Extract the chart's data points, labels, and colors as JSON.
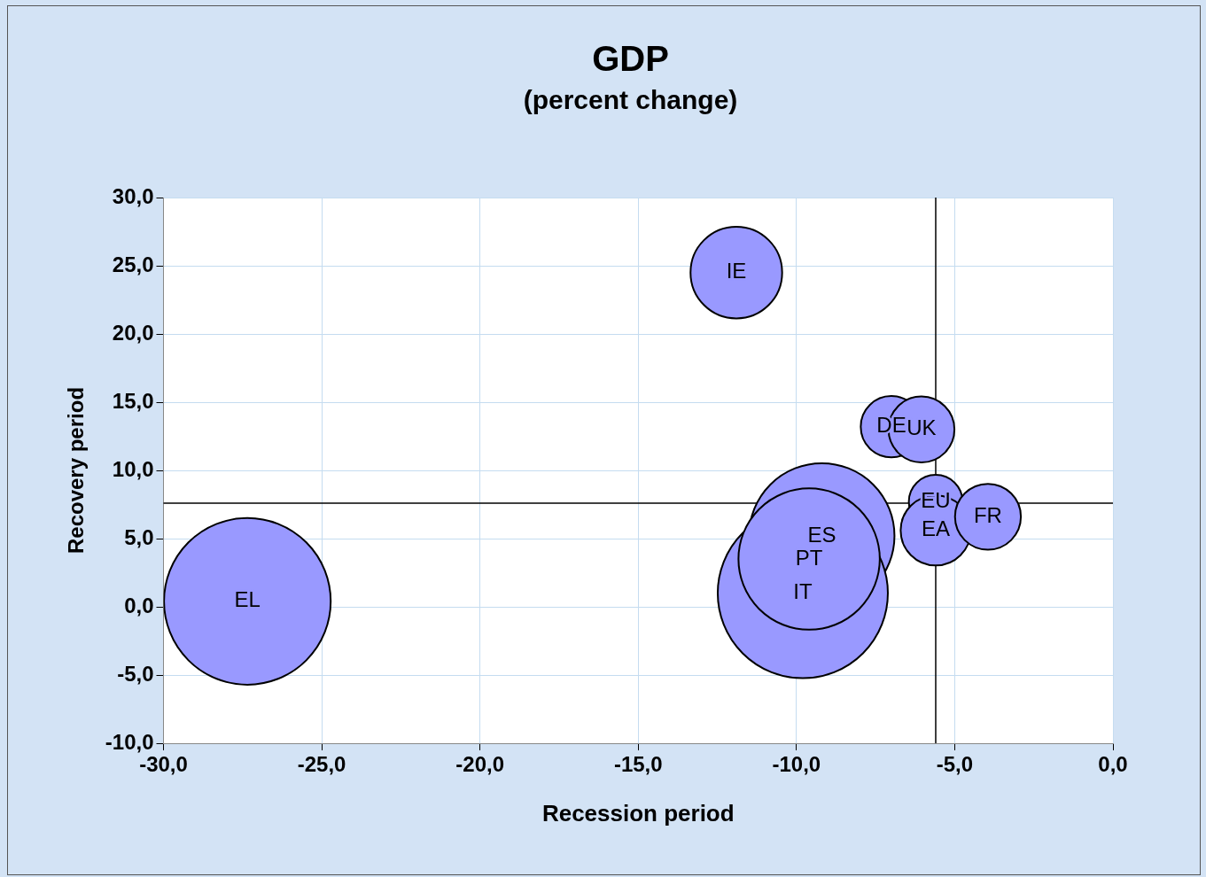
{
  "chart_data": {
    "type": "bubble",
    "title": "GDP",
    "subtitle": "(percent change)",
    "xlabel": "Recession period",
    "ylabel": "Recovery period",
    "x": [
      -27.35,
      -11.9,
      -7.0,
      -6.05,
      -5.6,
      -5.6,
      -3.95,
      -9.2,
      -9.8,
      -9.6
    ],
    "series": [
      {
        "color": "#9999ff",
        "values": [
          0.4,
          24.5,
          13.2,
          13.0,
          7.7,
          5.6,
          6.6,
          5.2,
          1.0,
          3.5
        ],
        "sizes": [
          0.96,
          0.29,
          0.13,
          0.15,
          0.1,
          0.17,
          0.15,
          0.73,
          1,
          0.69
        ]
      }
    ],
    "annotations": [
      {
        "text": "EL",
        "x": -27.35,
        "y": 0.4
      },
      {
        "text": "IE",
        "x": -11.9,
        "y": 24.5
      },
      {
        "text": "DE",
        "x": -7.0,
        "y": 13.2
      },
      {
        "text": "UK",
        "x": -6.05,
        "y": 13.0
      },
      {
        "text": "EU",
        "x": -5.6,
        "y": 7.7
      },
      {
        "text": "EA",
        "x": -5.6,
        "y": 5.6
      },
      {
        "text": "FR",
        "x": -3.95,
        "y": 6.6
      },
      {
        "text": "ES",
        "x": -9.2,
        "y": 5.2
      },
      {
        "text": "IT",
        "x": -9.8,
        "y": 1.0
      },
      {
        "text": "PT",
        "x": -9.6,
        "y": 3.5
      }
    ],
    "xlim": [
      -30,
      0
    ],
    "xticks": [
      {
        "value": -30,
        "label": "-30,0"
      },
      {
        "value": -25,
        "label": "-25,0"
      },
      {
        "value": -20,
        "label": "-20,0"
      },
      {
        "value": -15,
        "label": "-15,0"
      },
      {
        "value": -10,
        "label": "-10,0"
      },
      {
        "value": -5,
        "label": "-5,0"
      },
      {
        "value": 0,
        "label": "0,0"
      }
    ],
    "ylim": [
      -10,
      30
    ],
    "yticks": [
      {
        "value": -10,
        "label": "-10,0"
      },
      {
        "value": -5,
        "label": "-5,0"
      },
      {
        "value": 0,
        "label": "0,0"
      },
      {
        "value": 5,
        "label": "5,0"
      },
      {
        "value": 10,
        "label": "10,0"
      },
      {
        "value": 15,
        "label": "15,0"
      },
      {
        "value": 20,
        "label": "20,0"
      },
      {
        "value": 25,
        "label": "25,0"
      },
      {
        "value": 30,
        "label": "30,0"
      }
    ],
    "ref_lines": [
      {
        "axis": "x",
        "value": -5.6,
        "color": "#000000"
      },
      {
        "axis": "y",
        "value": 7.6,
        "color": "#000000"
      }
    ],
    "grid": true,
    "legend": false
  }
}
